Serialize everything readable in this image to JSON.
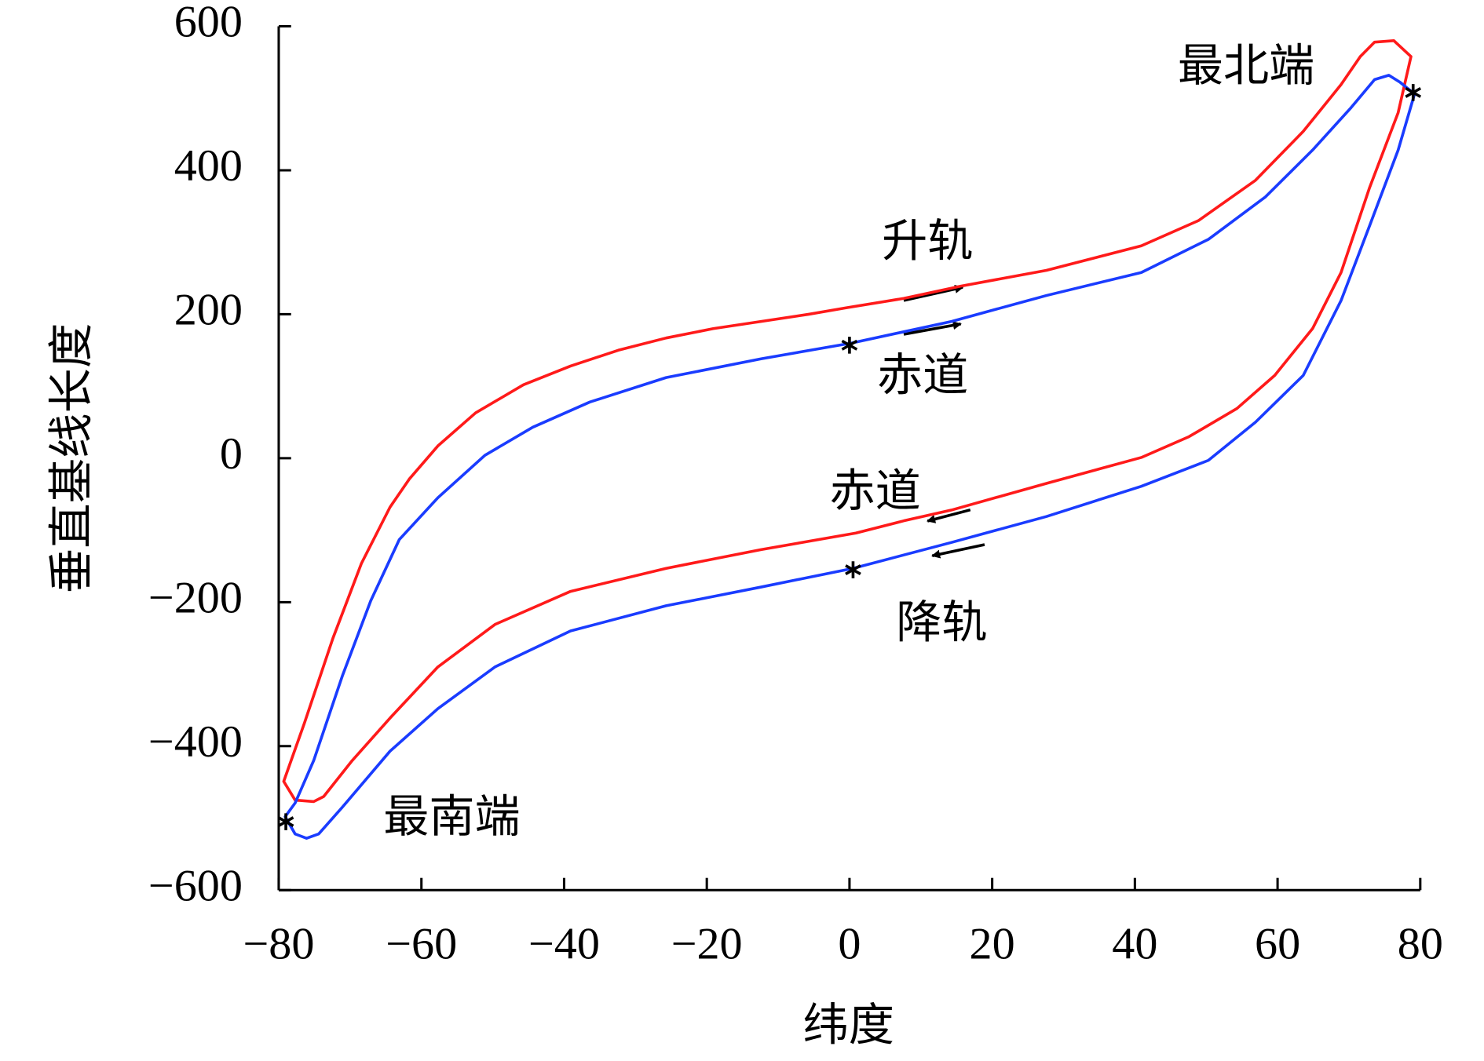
{
  "chart_data": {
    "type": "line",
    "xlabel": "纬度",
    "ylabel": "垂直基线长度",
    "xlim": [
      -80,
      80
    ],
    "ylim": [
      -600,
      600
    ],
    "xticks": [
      {
        "value": -80,
        "label": "−80"
      },
      {
        "value": -60,
        "label": "−60"
      },
      {
        "value": -40,
        "label": "−40"
      },
      {
        "value": -20,
        "label": "−20"
      },
      0,
      20,
      40,
      60,
      80
    ],
    "yticks": [
      {
        "value": -600,
        "label": "−600"
      },
      {
        "value": -400,
        "label": "−400"
      },
      {
        "value": -200,
        "label": "−200"
      },
      0,
      200,
      400,
      600
    ],
    "series": [
      {
        "color": "#ff1a1a",
        "x": [
          -79.3,
          -76.4,
          -72.4,
          -68.4,
          -64.4,
          -61.7,
          -57.7,
          -52.4,
          -45.7,
          -39.1,
          -32.4,
          -25.7,
          -19.1,
          -12.4,
          -5.7,
          -0.4,
          7.6,
          15.6,
          27.6,
          40.9,
          48.9,
          56.9,
          63.6,
          68.9,
          71.6,
          73.6,
          76.3,
          78.7,
          76.9,
          72.9,
          68.9,
          64.9,
          59.6,
          54.3,
          47.6,
          40.9,
          27.6,
          14.3,
          7.6,
          0.9,
          -12.4,
          -25.7,
          -39.1,
          -49.7,
          -57.7,
          -64.4,
          -69.7,
          -73.7,
          -75.1,
          -77.7
        ],
        "values": [
          -449,
          -368,
          -250,
          -146,
          -68,
          -29,
          17,
          63,
          102,
          128,
          150,
          167,
          180,
          190,
          200,
          209,
          222,
          239,
          261,
          295,
          330,
          386,
          454,
          519,
          558,
          578,
          580,
          558,
          480,
          376,
          258,
          180,
          115,
          69,
          30,
          1,
          -35,
          -72,
          -87,
          -104,
          -127,
          -153,
          -185,
          -231,
          -290,
          -361,
          -420,
          -470,
          -477,
          -475
        ]
      },
      {
        "color": "#1a3cff",
        "x": [
          -79.1,
          -77.7,
          -75.1,
          -71.1,
          -67.1,
          -63.1,
          -57.7,
          -51.1,
          -44.4,
          -36.4,
          -25.7,
          -12.4,
          0.3,
          14.3,
          27.6,
          40.9,
          50.3,
          58.3,
          64.9,
          70.3,
          73.6,
          75.6,
          77.2,
          79.2,
          76.9,
          72.9,
          68.9,
          63.6,
          56.9,
          50.3,
          40.9,
          27.6,
          14.3,
          0.5,
          -12.4,
          -25.7,
          -39.1,
          -49.7,
          -57.7,
          -64.4,
          -71.1,
          -74.4,
          -76.1,
          -77.7
        ],
        "values": [
          -498,
          -479,
          -420,
          -303,
          -198,
          -113,
          -55,
          4,
          43,
          78,
          112,
          138,
          160,
          190,
          226,
          258,
          304,
          363,
          428,
          487,
          526,
          532,
          522,
          506,
          428,
          323,
          219,
          115,
          50,
          -3,
          -39,
          -81,
          -117,
          -153,
          -179,
          -205,
          -240,
          -290,
          -348,
          -407,
          -485,
          -522,
          -528,
          -522
        ]
      },
      {
        "color": "#000000",
        "marker": "*",
        "x": [
          -79,
          0,
          0.5,
          79
        ],
        "values": [
          -505,
          157,
          -155,
          508
        ]
      }
    ],
    "annotations": [
      "最北端",
      "升轨",
      "赤道",
      "赤道",
      "降轨",
      "最南端"
    ]
  }
}
